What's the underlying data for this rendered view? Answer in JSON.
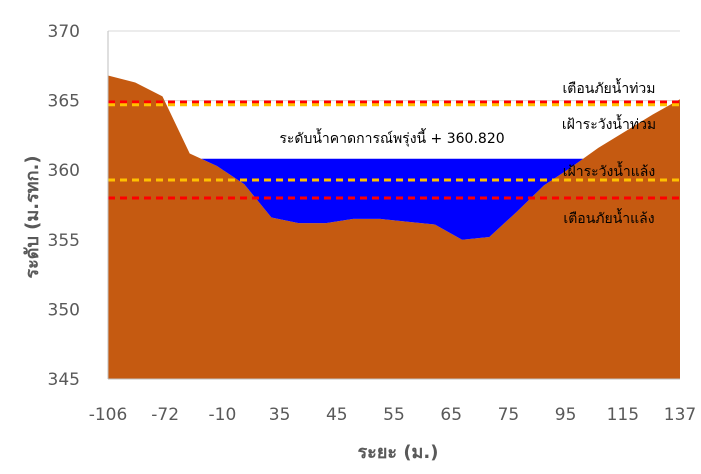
{
  "chart_data": {
    "type": "area",
    "xlabel": "ระยะ (ม.)",
    "ylabel": "ระดับ (ม.รทก.)",
    "ylim": [
      345,
      370
    ],
    "yticks": [
      "345",
      "350",
      "355",
      "360",
      "365",
      "370"
    ],
    "xticks": [
      "-106",
      "-72",
      "-10",
      "35",
      "45",
      "55",
      "65",
      "75",
      "95",
      "115",
      "137"
    ],
    "grid": "horizontal",
    "colors": {
      "ground": "#C55A11",
      "water": "#0000FF",
      "danger_line": "#FF0000",
      "watch_line": "#FFC000",
      "grid": "#D9D9D9",
      "axis": "#BFBFBF"
    },
    "terrain": {
      "x_index": [
        0,
        1,
        2,
        3,
        4,
        5,
        6,
        7,
        8,
        9,
        10,
        11,
        12,
        13,
        14,
        15,
        16,
        17,
        18,
        19,
        20,
        21
      ],
      "elevation": [
        366.8,
        366.3,
        365.3,
        361.2,
        360.3,
        359.0,
        356.6,
        356.2,
        356.2,
        356.5,
        356.5,
        356.3,
        356.1,
        355.0,
        355.2,
        357.0,
        358.9,
        360.2,
        361.6,
        362.8,
        364.0,
        365.1
      ]
    },
    "forecast": {
      "label": "ระดับน้ำคาดการณ์พรุ่งนี้ + 360.820",
      "level": 360.82
    },
    "threshold_lines": [
      {
        "name": "flood_warning",
        "label": "เตือนภัยน้ำท่วม",
        "level": 364.9,
        "color": "#FF0000"
      },
      {
        "name": "flood_watch",
        "label": "เฝ้าระวังน้ำท่วม",
        "level": 364.7,
        "color": "#FFC000"
      },
      {
        "name": "drought_watch",
        "label": "เฝ้าระวังน้ำแล้ง",
        "level": 359.3,
        "color": "#FFC000"
      },
      {
        "name": "drought_warning",
        "label": "เตือนภัยน้ำแล้ง",
        "level": 358.0,
        "color": "#FF0000"
      }
    ]
  }
}
